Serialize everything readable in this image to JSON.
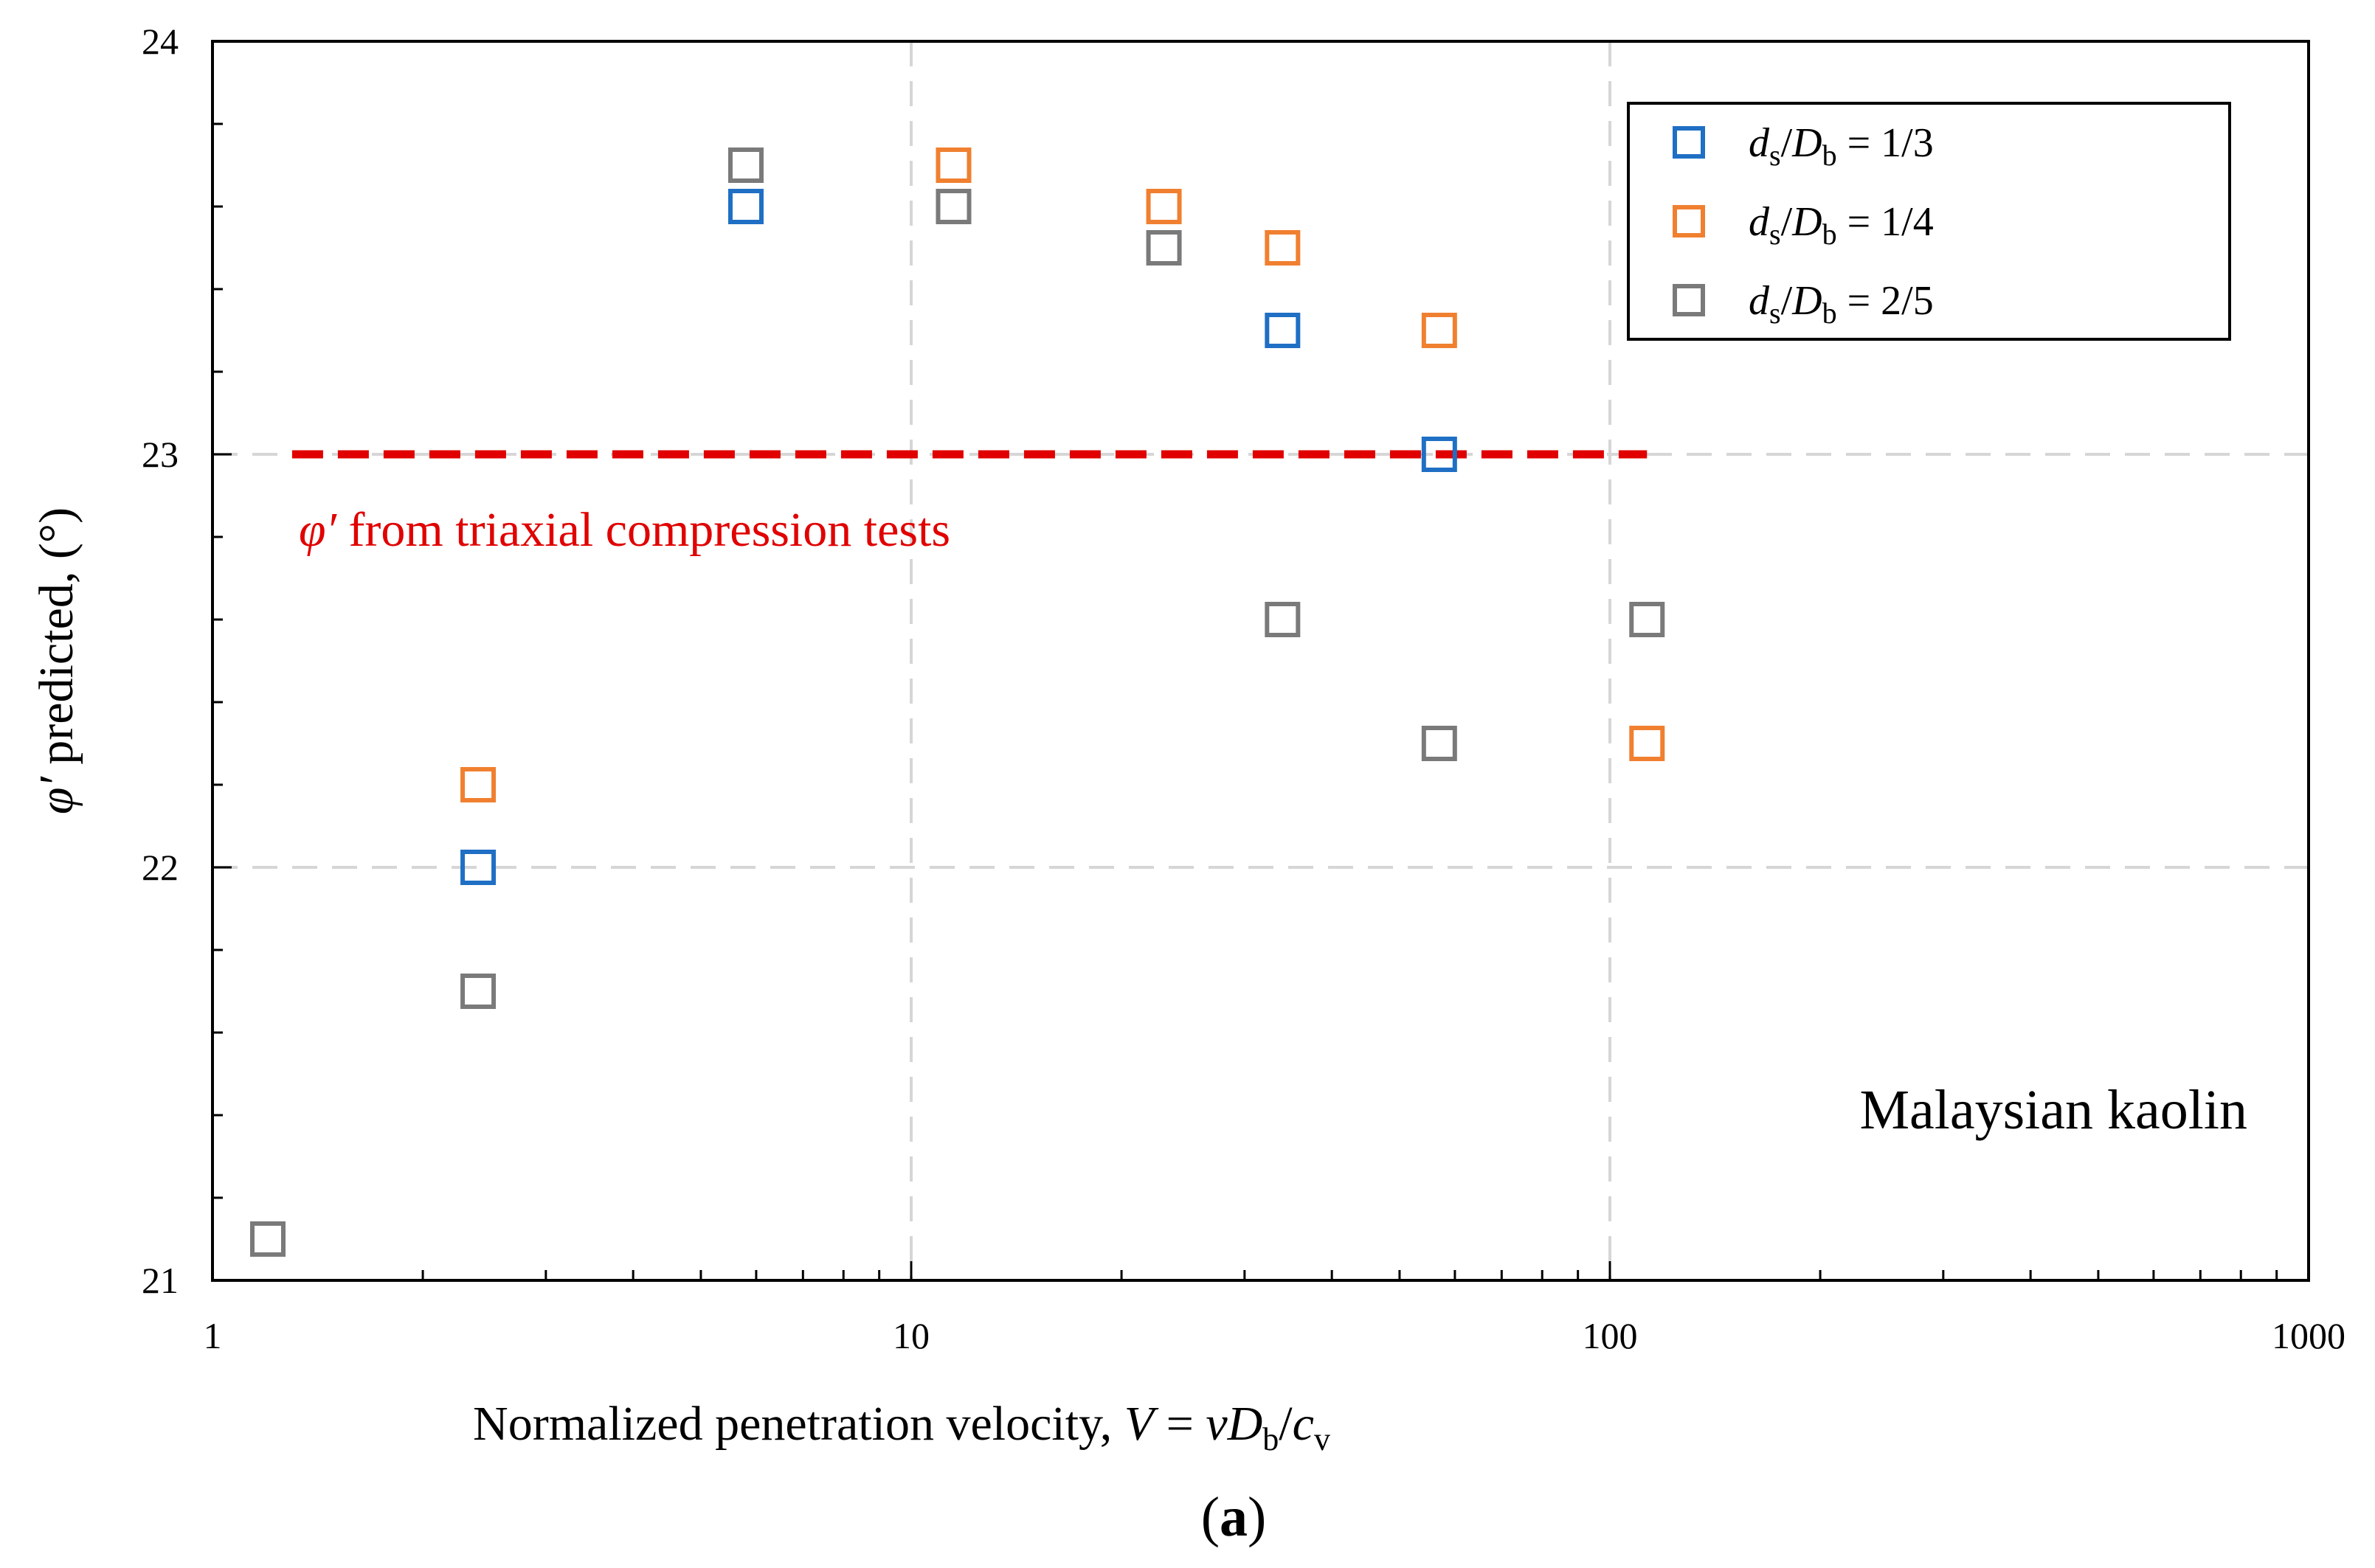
{
  "chart_data": {
    "type": "scatter",
    "xscale": "log",
    "xlim": [
      1,
      1000
    ],
    "ylim": [
      21,
      24
    ],
    "xticks": [
      1,
      10,
      100,
      1000
    ],
    "yticks": [
      21,
      22,
      23,
      24
    ],
    "grid": true,
    "xlabel": {
      "prefix": "Normalized penetration velocity, ",
      "V": "V",
      "eq": " = ",
      "v": "v",
      "D": "D",
      "b": "b",
      "slash": "/",
      "c": "c",
      "vsub": "v"
    },
    "ylabel": {
      "phi": "φ′",
      "rest": " predicted, (°)"
    },
    "series": [
      {
        "name": "ds/Db = 1/3",
        "color": "#1f6fc4",
        "legend": {
          "d": "d",
          "s": "s",
          "slash": "/",
          "D": "D",
          "b": "b",
          "value": " = 1/3"
        },
        "x": [
          2.4,
          5.8,
          34,
          57
        ],
        "y": [
          22.0,
          23.6,
          23.3,
          23.0
        ]
      },
      {
        "name": "ds/Db = 1/4",
        "color": "#f08030",
        "legend": {
          "d": "d",
          "s": "s",
          "slash": "/",
          "D": "D",
          "b": "b",
          "value": " = 1/4"
        },
        "x": [
          2.4,
          11.5,
          23,
          34,
          57,
          113
        ],
        "y": [
          22.2,
          23.7,
          23.6,
          23.5,
          23.3,
          22.3
        ]
      },
      {
        "name": "ds/Db = 2/5",
        "color": "#7a7a7a",
        "legend": {
          "d": "d",
          "s": "s",
          "slash": "/",
          "D": "D",
          "b": "b",
          "value": " = 2/5"
        },
        "x": [
          1.2,
          2.4,
          5.8,
          11.5,
          23,
          34,
          57,
          113
        ],
        "y": [
          21.1,
          21.7,
          23.7,
          23.6,
          23.5,
          22.6,
          22.3,
          22.6
        ]
      }
    ],
    "reference_line": {
      "y": 23,
      "x_range": [
        1.3,
        113
      ],
      "color": "#e00000",
      "label_phi": "φ′",
      "label_rest": " from triaxial compression tests"
    },
    "annotation": "Malaysian kaolin",
    "legend_position": "top-right",
    "panel_label": {
      "open": "(",
      "letter": "a",
      "close": ")"
    }
  }
}
